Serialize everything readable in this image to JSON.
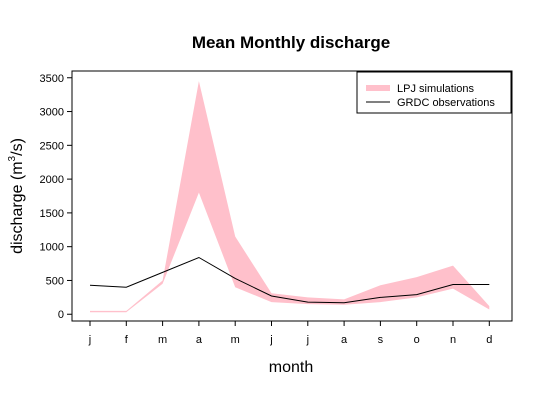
{
  "chart_data": {
    "type": "line",
    "title": "Mean Monthly discharge",
    "xlabel": "month",
    "ylabel": "discharge (m³/s)",
    "ylabel_parts": {
      "prefix": "discharge (m",
      "sup": "3",
      "suffix": "/s)"
    },
    "categories": [
      "j",
      "f",
      "m",
      "a",
      "m",
      "j",
      "j",
      "a",
      "s",
      "o",
      "n",
      "d"
    ],
    "yticks": [
      0,
      500,
      1000,
      1500,
      2000,
      2500,
      3000,
      3500
    ],
    "ylim": [
      -100,
      3600
    ],
    "grid": false,
    "legend_position": "top-right",
    "series": [
      {
        "name": "LPJ simulations",
        "kind": "band",
        "color": "#ffc0cb",
        "lower": [
          30,
          30,
          450,
          1800,
          400,
          180,
          150,
          140,
          180,
          250,
          380,
          70
        ],
        "upper": [
          50,
          50,
          500,
          3450,
          1150,
          310,
          250,
          220,
          430,
          550,
          720,
          120
        ]
      },
      {
        "name": "GRDC observations",
        "kind": "line",
        "color": "#000000",
        "values": [
          430,
          400,
          620,
          840,
          530,
          270,
          180,
          170,
          250,
          290,
          440,
          440
        ]
      }
    ]
  }
}
